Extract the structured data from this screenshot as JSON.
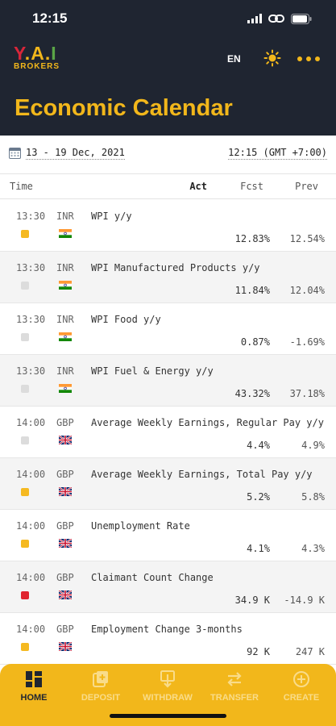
{
  "status_bar": {
    "time": "12:15"
  },
  "header": {
    "logo": {
      "y": "Y",
      "a": "A",
      "i": "I",
      "sub": "BROKERS"
    },
    "language": "EN"
  },
  "page_title": "Economic Calendar",
  "filters": {
    "date_range": "13 - 19 Dec, 2021",
    "timezone": "12:15 (GMT +7:00)"
  },
  "columns": {
    "time": "Time",
    "act": "Act",
    "fcst": "Fcst",
    "prev": "Prev"
  },
  "events": [
    {
      "time": "13:30",
      "currency": "INR",
      "name": "WPI y/y",
      "fcst": "12.83%",
      "prev": "12.54%",
      "importance": "medium",
      "flag": "india"
    },
    {
      "time": "13:30",
      "currency": "INR",
      "name": "WPI Manufactured Products y/y",
      "fcst": "11.84%",
      "prev": "12.04%",
      "importance": "low",
      "flag": "india"
    },
    {
      "time": "13:30",
      "currency": "INR",
      "name": "WPI Food y/y",
      "fcst": "0.87%",
      "prev": "-1.69%",
      "importance": "low",
      "flag": "india"
    },
    {
      "time": "13:30",
      "currency": "INR",
      "name": "WPI Fuel & Energy y/y",
      "fcst": "43.32%",
      "prev": "37.18%",
      "importance": "low",
      "flag": "india"
    },
    {
      "time": "14:00",
      "currency": "GBP",
      "name": "Average Weekly Earnings, Regular Pay y/y",
      "fcst": "4.4%",
      "prev": "4.9%",
      "importance": "low",
      "flag": "uk"
    },
    {
      "time": "14:00",
      "currency": "GBP",
      "name": "Average Weekly Earnings, Total Pay y/y",
      "fcst": "5.2%",
      "prev": "5.8%",
      "importance": "medium",
      "flag": "uk"
    },
    {
      "time": "14:00",
      "currency": "GBP",
      "name": "Unemployment Rate",
      "fcst": "4.1%",
      "prev": "4.3%",
      "importance": "medium",
      "flag": "uk"
    },
    {
      "time": "14:00",
      "currency": "GBP",
      "name": "Claimant Count Change",
      "fcst": "34.9 K",
      "prev": "-14.9 K",
      "importance": "high",
      "flag": "uk"
    },
    {
      "time": "14:00",
      "currency": "GBP",
      "name": "Employment Change 3-months",
      "fcst": "92 K",
      "prev": "247 K",
      "importance": "medium",
      "flag": "uk"
    }
  ],
  "bottom_nav": [
    {
      "label": "HOME",
      "icon": "home-grid-icon",
      "active": true
    },
    {
      "label": "DEPOSIT",
      "icon": "deposit-icon",
      "active": false
    },
    {
      "label": "WITHDRAW",
      "icon": "withdraw-icon",
      "active": false
    },
    {
      "label": "TRANSFER",
      "icon": "transfer-icon",
      "active": false
    },
    {
      "label": "CREATE",
      "icon": "plus-circle-icon",
      "active": false
    }
  ],
  "colors": {
    "header_bg": "#1f2531",
    "accent": "#f2b71b",
    "importance_high": "#e0242f",
    "importance_medium": "#f5b921",
    "importance_low": "#dcdcdc"
  }
}
